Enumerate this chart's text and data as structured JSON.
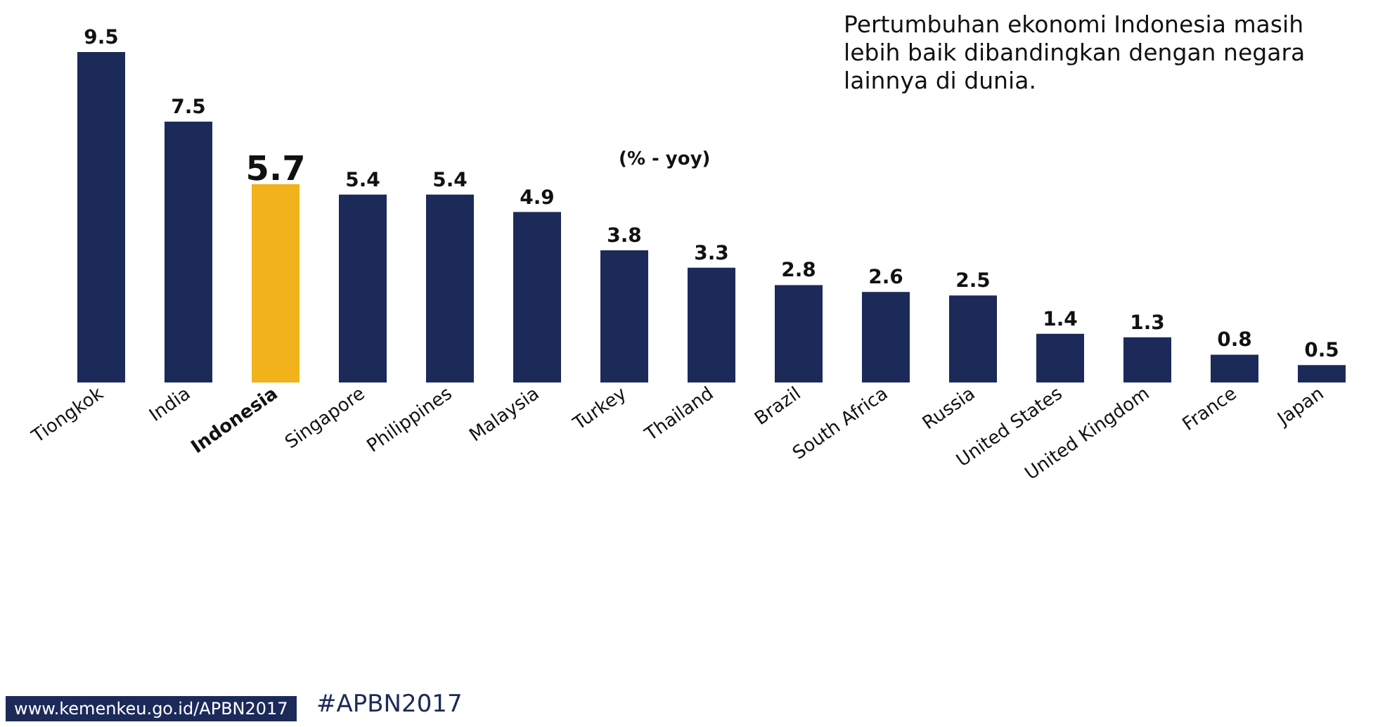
{
  "chart_data": {
    "type": "bar",
    "title": "Pertumbuhan ekonomi Indonesia masih lebih baik dibandingkan dengan negara lainnya di dunia.",
    "categories": [
      "Tiongkok",
      "India",
      "Indonesia",
      "Singapore",
      "Philippines",
      "Malaysia",
      "Turkey",
      "Thailand",
      "Brazil",
      "South Africa",
      "Russia",
      "United States",
      "United Kingdom",
      "France",
      "Japan"
    ],
    "values": [
      9.5,
      7.5,
      5.7,
      5.4,
      5.4,
      4.9,
      3.8,
      3.3,
      2.8,
      2.6,
      2.5,
      1.4,
      1.3,
      0.8,
      0.5
    ],
    "colors": [
      "#1c2a5a",
      "#1c2a5a",
      "#f2b21b",
      "#1c2a5a",
      "#1c2a5a",
      "#1c2a5a",
      "#1c2a5a",
      "#1c2a5a",
      "#1c2a5a",
      "#1c2a5a",
      "#1c2a5a",
      "#1c2a5a",
      "#1c2a5a",
      "#1c2a5a",
      "#1c2a5a"
    ],
    "data_labels": true,
    "annotations": [
      "(% - yoy)",
      "www.kemenkeu.go.id/APBN2017",
      "#APBN2017"
    ]
  }
}
